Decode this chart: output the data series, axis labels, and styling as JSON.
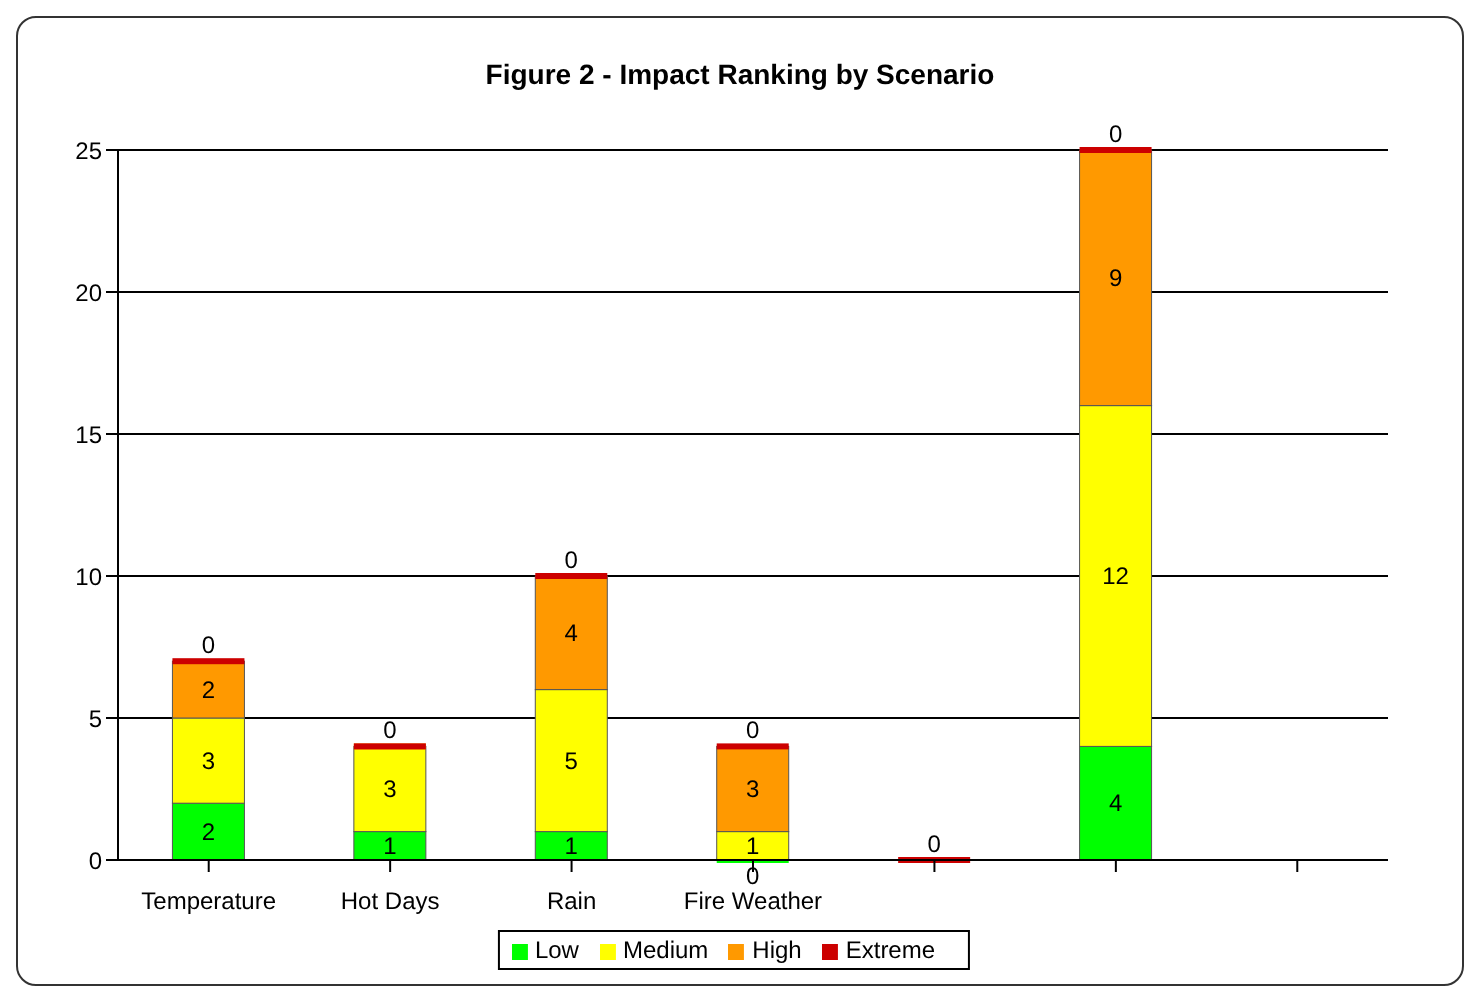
{
  "chart_data": {
    "type": "bar",
    "title": "Figure 2 - Impact Ranking by Scenario",
    "stacked": true,
    "categories": [
      "Temperature",
      "Hot Days",
      "Rain",
      "Fire Weather",
      null,
      null,
      null
    ],
    "series": [
      {
        "name": "Low",
        "color": "#00ff00",
        "values": [
          2,
          1,
          1,
          0,
          null,
          4,
          null
        ],
        "value_labels": [
          "2",
          "1",
          "1",
          "0",
          null,
          "4",
          null
        ]
      },
      {
        "name": "Medium",
        "color": "#ffff00",
        "values": [
          3,
          3,
          5,
          1,
          null,
          12,
          null
        ],
        "value_labels": [
          "3",
          "3",
          "5",
          "1",
          null,
          "12",
          null
        ]
      },
      {
        "name": "High",
        "color": "#ff9900",
        "values": [
          2,
          0,
          4,
          3,
          null,
          9,
          null
        ],
        "value_labels": [
          "2",
          null,
          "4",
          "3",
          null,
          "9",
          null
        ]
      },
      {
        "name": "Extreme",
        "color": "#cc0000",
        "values": [
          0,
          0,
          0,
          0,
          0,
          0,
          null
        ],
        "value_labels": [
          "0",
          "0",
          "0",
          "0",
          "0",
          "0",
          null
        ]
      }
    ],
    "ylim": [
      0,
      25
    ],
    "yticks": [
      0,
      5,
      10,
      15,
      20,
      25
    ],
    "grid": "y",
    "legend": "bottom"
  }
}
